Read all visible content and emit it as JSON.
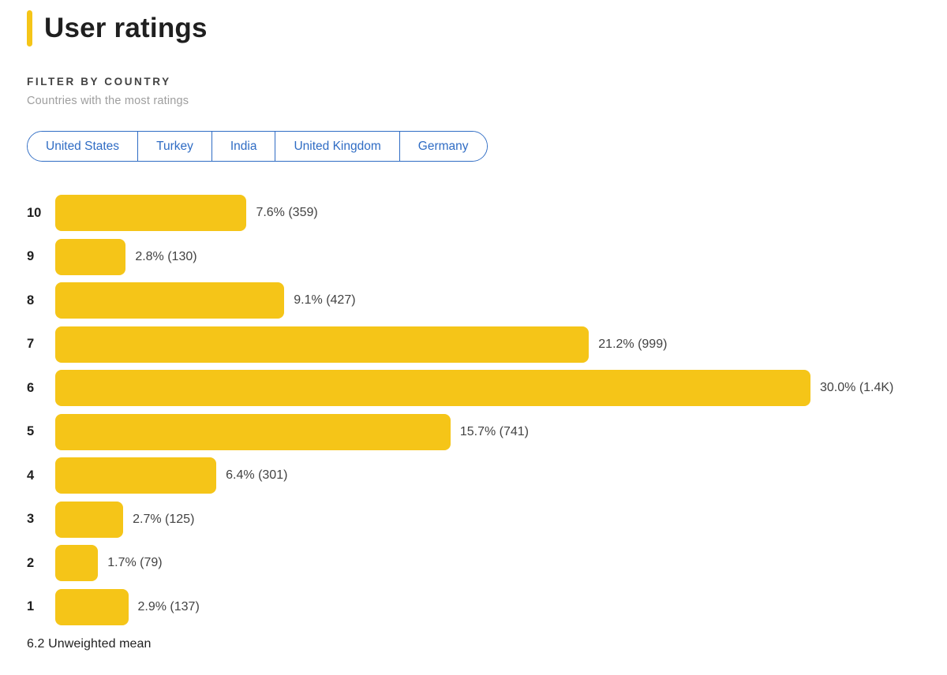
{
  "header": {
    "title": "User ratings",
    "accent_color": "#F5C518"
  },
  "filter": {
    "label": "FILTER BY COUNTRY",
    "subtitle": "Countries with the most ratings",
    "countries": [
      "United States",
      "Turkey",
      "India",
      "United Kingdom",
      "Germany"
    ],
    "accent_color": "#2F6CC4"
  },
  "chart_data": {
    "type": "bar",
    "orientation": "horizontal",
    "title": "User ratings",
    "categories": [
      "10",
      "9",
      "8",
      "7",
      "6",
      "5",
      "4",
      "3",
      "2",
      "1"
    ],
    "values": [
      7.6,
      2.8,
      9.1,
      21.2,
      30.0,
      15.7,
      6.4,
      2.7,
      1.7,
      2.9
    ],
    "counts": [
      "359",
      "130",
      "427",
      "999",
      "1.4K",
      "741",
      "301",
      "125",
      "79",
      "137"
    ],
    "labels": [
      "7.6% (359)",
      "2.8% (130)",
      "9.1% (427)",
      "21.2% (999)",
      "30.0% (1.4K)",
      "15.7% (741)",
      "6.4% (301)",
      "2.7% (125)",
      "1.7% (79)",
      "2.9% (137)"
    ],
    "bar_color": "#F5C518",
    "xlim": [
      0,
      30
    ],
    "grid": false,
    "legend": false
  },
  "footer": {
    "mean_label": "6.2 Unweighted mean",
    "mean_value": "6.2"
  }
}
